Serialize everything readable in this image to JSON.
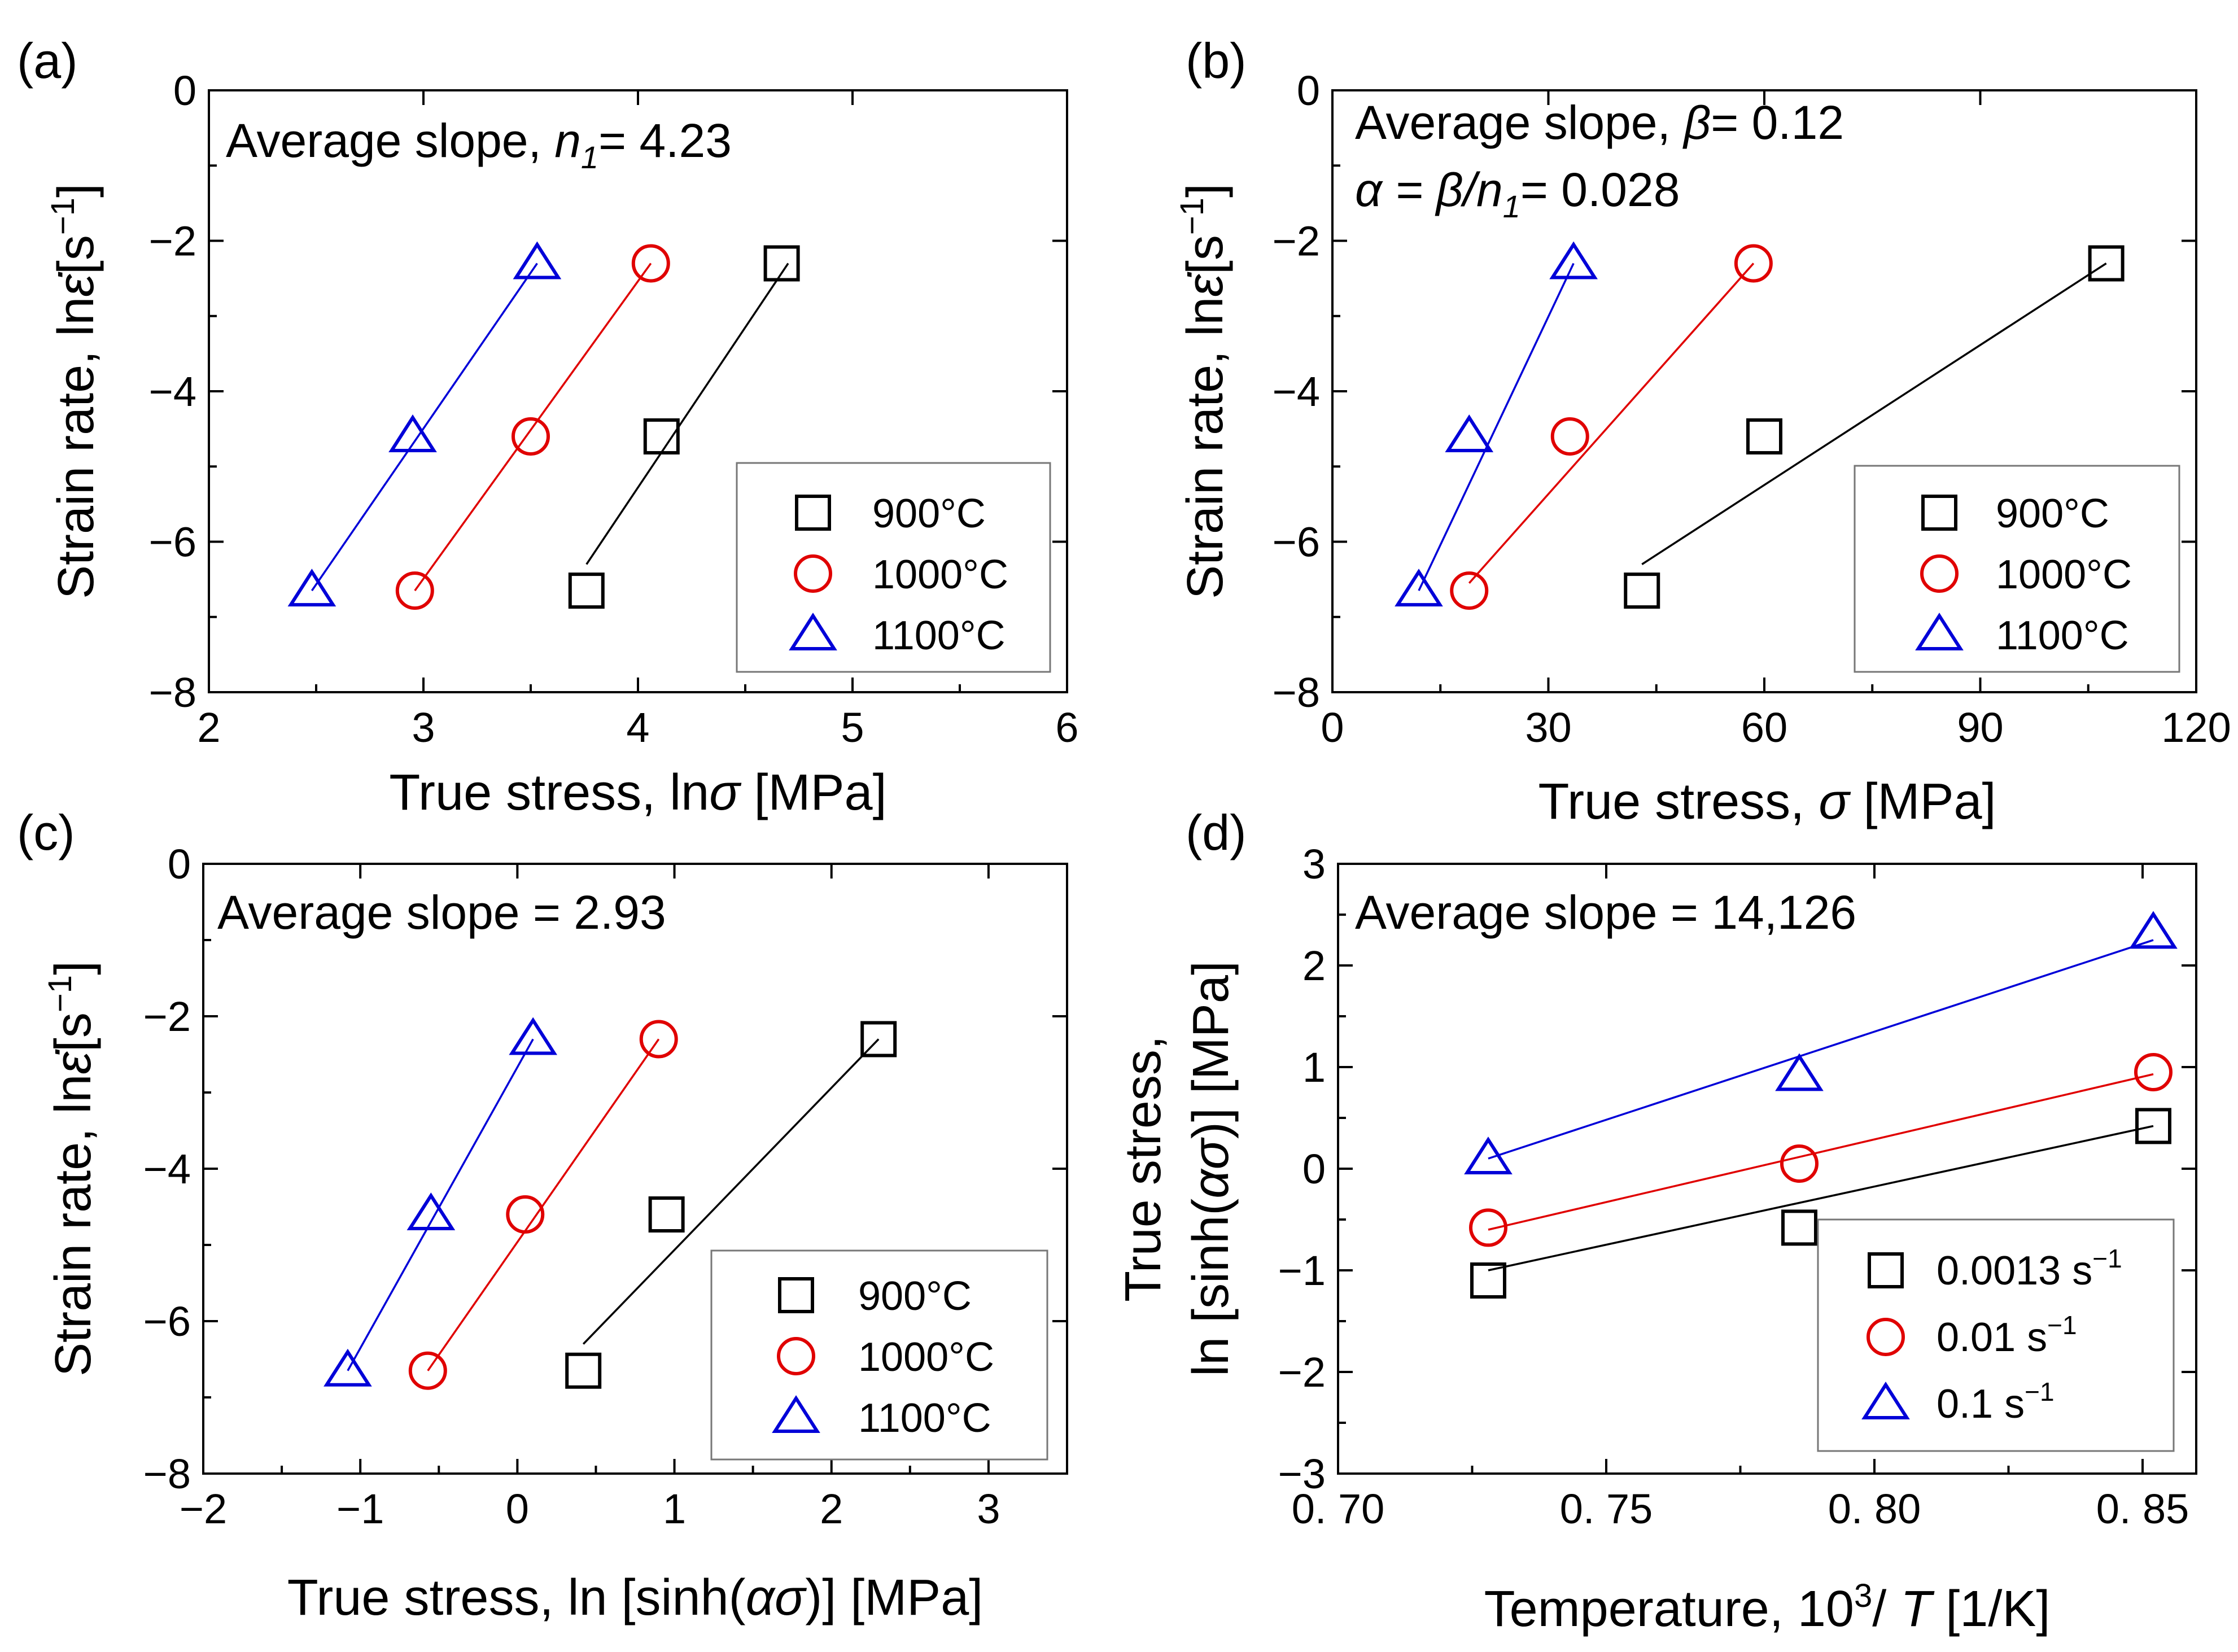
{
  "colors": {
    "s1": "#000000",
    "s2": "#e00000",
    "s3": "#0000d8"
  },
  "chart_data": [
    {
      "type": "scatter",
      "panel": "(a)",
      "xlabel": "True stress, lnσ [MPa]",
      "xlabel_parts": [
        "True stress, ln",
        "σ",
        " [MPa]"
      ],
      "ylabel_parts": [
        "Strain rate, ln",
        "ε̇",
        "[s",
        "−1",
        "]"
      ],
      "xlim": [
        2,
        6
      ],
      "ylim": [
        -8,
        0
      ],
      "xticks": [
        2,
        3,
        4,
        5,
        6
      ],
      "xtick_labels": [
        "2",
        "3",
        "4",
        "5",
        "6"
      ],
      "yticks": [
        0,
        -2,
        -4,
        -6,
        -8
      ],
      "ytick_labels": [
        "0",
        "−2",
        "−4",
        "−6",
        "−8"
      ],
      "annotations": [
        [
          "Average slope, ",
          "n",
          "1",
          "= 4.23"
        ]
      ],
      "series": [
        {
          "name": "900°C",
          "marker": "square",
          "color": "#000000",
          "x": [
            3.76,
            4.11,
            4.67
          ],
          "y": [
            -6.65,
            -4.6,
            -2.3
          ],
          "fit": [
            [
              3.76,
              -6.3
            ],
            [
              4.7,
              -2.3
            ]
          ]
        },
        {
          "name": "1000°C",
          "marker": "circle",
          "color": "#e00000",
          "x": [
            2.96,
            3.5,
            4.06
          ],
          "y": [
            -6.65,
            -4.6,
            -2.3
          ],
          "fit": [
            [
              2.96,
              -6.65
            ],
            [
              4.06,
              -2.3
            ]
          ]
        },
        {
          "name": "1100°C",
          "marker": "triangle",
          "color": "#0000d8",
          "x": [
            2.48,
            2.95,
            3.53
          ],
          "y": [
            -6.65,
            -4.6,
            -2.3
          ],
          "fit": [
            [
              2.48,
              -6.65
            ],
            [
              3.53,
              -2.3
            ]
          ]
        }
      ]
    },
    {
      "type": "scatter",
      "panel": "(b)",
      "xlabel": "True stress, σ [MPa]",
      "xlabel_parts": [
        "True stress, ",
        "σ",
        " [MPa]"
      ],
      "ylabel_parts": [
        "Strain rate, ln",
        "ε̇",
        "[s",
        "−1",
        "]"
      ],
      "xlim": [
        0,
        120
      ],
      "ylim": [
        -8,
        0
      ],
      "xticks": [
        0,
        30,
        60,
        90,
        120
      ],
      "xtick_labels": [
        "0",
        "30",
        "60",
        "90",
        "120"
      ],
      "yticks": [
        0,
        -2,
        -4,
        -6,
        -8
      ],
      "ytick_labels": [
        "0",
        "−2",
        "−4",
        "−6",
        "−8"
      ],
      "annotations": [
        [
          "Average slope, ",
          "β",
          "",
          "= 0.12"
        ],
        [
          "α",
          " = ",
          "β/n",
          "1",
          "= 0.028"
        ]
      ],
      "series": [
        {
          "name": "900°C",
          "marker": "square",
          "color": "#000000",
          "x": [
            43,
            60,
            107.5
          ],
          "y": [
            -6.65,
            -4.6,
            -2.3
          ],
          "fit": [
            [
              43,
              -6.3
            ],
            [
              107.5,
              -2.3
            ]
          ]
        },
        {
          "name": "1000°C",
          "marker": "circle",
          "color": "#e00000",
          "x": [
            19,
            33,
            58.5
          ],
          "y": [
            -6.65,
            -4.6,
            -2.3
          ],
          "fit": [
            [
              19,
              -6.55
            ],
            [
              58.5,
              -2.3
            ]
          ]
        },
        {
          "name": "1100°C",
          "marker": "triangle",
          "color": "#0000d8",
          "x": [
            12,
            19,
            33.5
          ],
          "y": [
            -6.65,
            -4.6,
            -2.3
          ],
          "fit": [
            [
              12,
              -6.65
            ],
            [
              33.5,
              -2.3
            ]
          ]
        }
      ]
    },
    {
      "type": "scatter",
      "panel": "(c)",
      "xlabel": "True stress, ln [sinh(ασ)] [MPa]",
      "xlabel_parts": [
        "True stress, ln [sinh(",
        "ασ",
        ")] [MPa]"
      ],
      "ylabel_parts": [
        "Strain rate, ln",
        "ε̇",
        "[s",
        "−1",
        "]"
      ],
      "xlim": [
        -2,
        3.5
      ],
      "ylim": [
        -8,
        0
      ],
      "xticks": [
        -2,
        -1,
        0,
        1,
        2,
        3
      ],
      "xtick_labels": [
        "−2",
        "−1",
        "0",
        "1",
        "2",
        "3"
      ],
      "yticks": [
        0,
        -2,
        -4,
        -6,
        -8
      ],
      "ytick_labels": [
        "0",
        "−2",
        "−4",
        "−6",
        "−8"
      ],
      "annotations": [
        [
          "Average slope = 2.93"
        ]
      ],
      "series": [
        {
          "name": "900°C",
          "marker": "square",
          "color": "#000000",
          "x": [
            0.42,
            0.95,
            2.3
          ],
          "y": [
            -6.65,
            -4.6,
            -2.3
          ],
          "fit": [
            [
              0.42,
              -6.3
            ],
            [
              2.3,
              -2.3
            ]
          ]
        },
        {
          "name": "1000°C",
          "marker": "circle",
          "color": "#e00000",
          "x": [
            -0.57,
            0.05,
            0.9
          ],
          "y": [
            -6.65,
            -4.6,
            -2.3
          ],
          "fit": [
            [
              -0.57,
              -6.65
            ],
            [
              0.9,
              -2.3
            ]
          ]
        },
        {
          "name": "1100°C",
          "marker": "triangle",
          "color": "#0000d8",
          "x": [
            -1.08,
            -0.55,
            0.1
          ],
          "y": [
            -6.65,
            -4.6,
            -2.3
          ],
          "fit": [
            [
              -1.08,
              -6.65
            ],
            [
              0.1,
              -2.3
            ]
          ]
        }
      ]
    },
    {
      "type": "scatter",
      "panel": "(d)",
      "xlabel": "Temperature, 10³/T [1/K]",
      "xlabel_parts": [
        "Temperature, 10",
        "3",
        "/ ",
        "T",
        " [1/K]"
      ],
      "ylabel_line1": "True stress,",
      "ylabel_line2": "ln [sinh(ασ)] [MPa]",
      "ylabel_line2_parts": [
        "ln [sinh(",
        "ασ",
        ")] [MPa]"
      ],
      "xlim": [
        0.7,
        0.86
      ],
      "ylim": [
        -3,
        3
      ],
      "xticks": [
        0.7,
        0.75,
        0.8,
        0.85
      ],
      "xtick_labels": [
        "0. 70",
        "0. 75",
        "0. 80",
        "0. 85"
      ],
      "yticks": [
        3,
        2,
        1,
        0,
        -1,
        -2,
        -3
      ],
      "ytick_labels": [
        "3",
        "2",
        "1",
        "0",
        "−1",
        "−2",
        "−3"
      ],
      "annotations": [
        [
          "Average slope = 14,126"
        ]
      ],
      "series": [
        {
          "name": "0.0013 s⁻¹",
          "legend_parts": [
            "0.0013 s",
            "−1"
          ],
          "marker": "square",
          "color": "#000000",
          "x": [
            0.728,
            0.786,
            0.852
          ],
          "y": [
            -1.1,
            -0.58,
            0.42
          ],
          "fit": [
            [
              0.728,
              -1.0
            ],
            [
              0.852,
              0.42
            ]
          ]
        },
        {
          "name": "0.01 s⁻¹",
          "legend_parts": [
            "0.01 s",
            "−1"
          ],
          "marker": "circle",
          "color": "#e00000",
          "x": [
            0.728,
            0.786,
            0.852
          ],
          "y": [
            -0.58,
            0.05,
            0.95
          ],
          "fit": [
            [
              0.728,
              -0.6
            ],
            [
              0.852,
              0.93
            ]
          ]
        },
        {
          "name": "0.1 s⁻¹",
          "legend_parts": [
            "0.1 s",
            "−1"
          ],
          "marker": "triangle",
          "color": "#0000d8",
          "x": [
            0.728,
            0.786,
            0.852
          ],
          "y": [
            0.1,
            0.92,
            2.32
          ],
          "fit": [
            [
              0.728,
              0.1
            ],
            [
              0.852,
              2.25
            ]
          ]
        }
      ]
    }
  ]
}
